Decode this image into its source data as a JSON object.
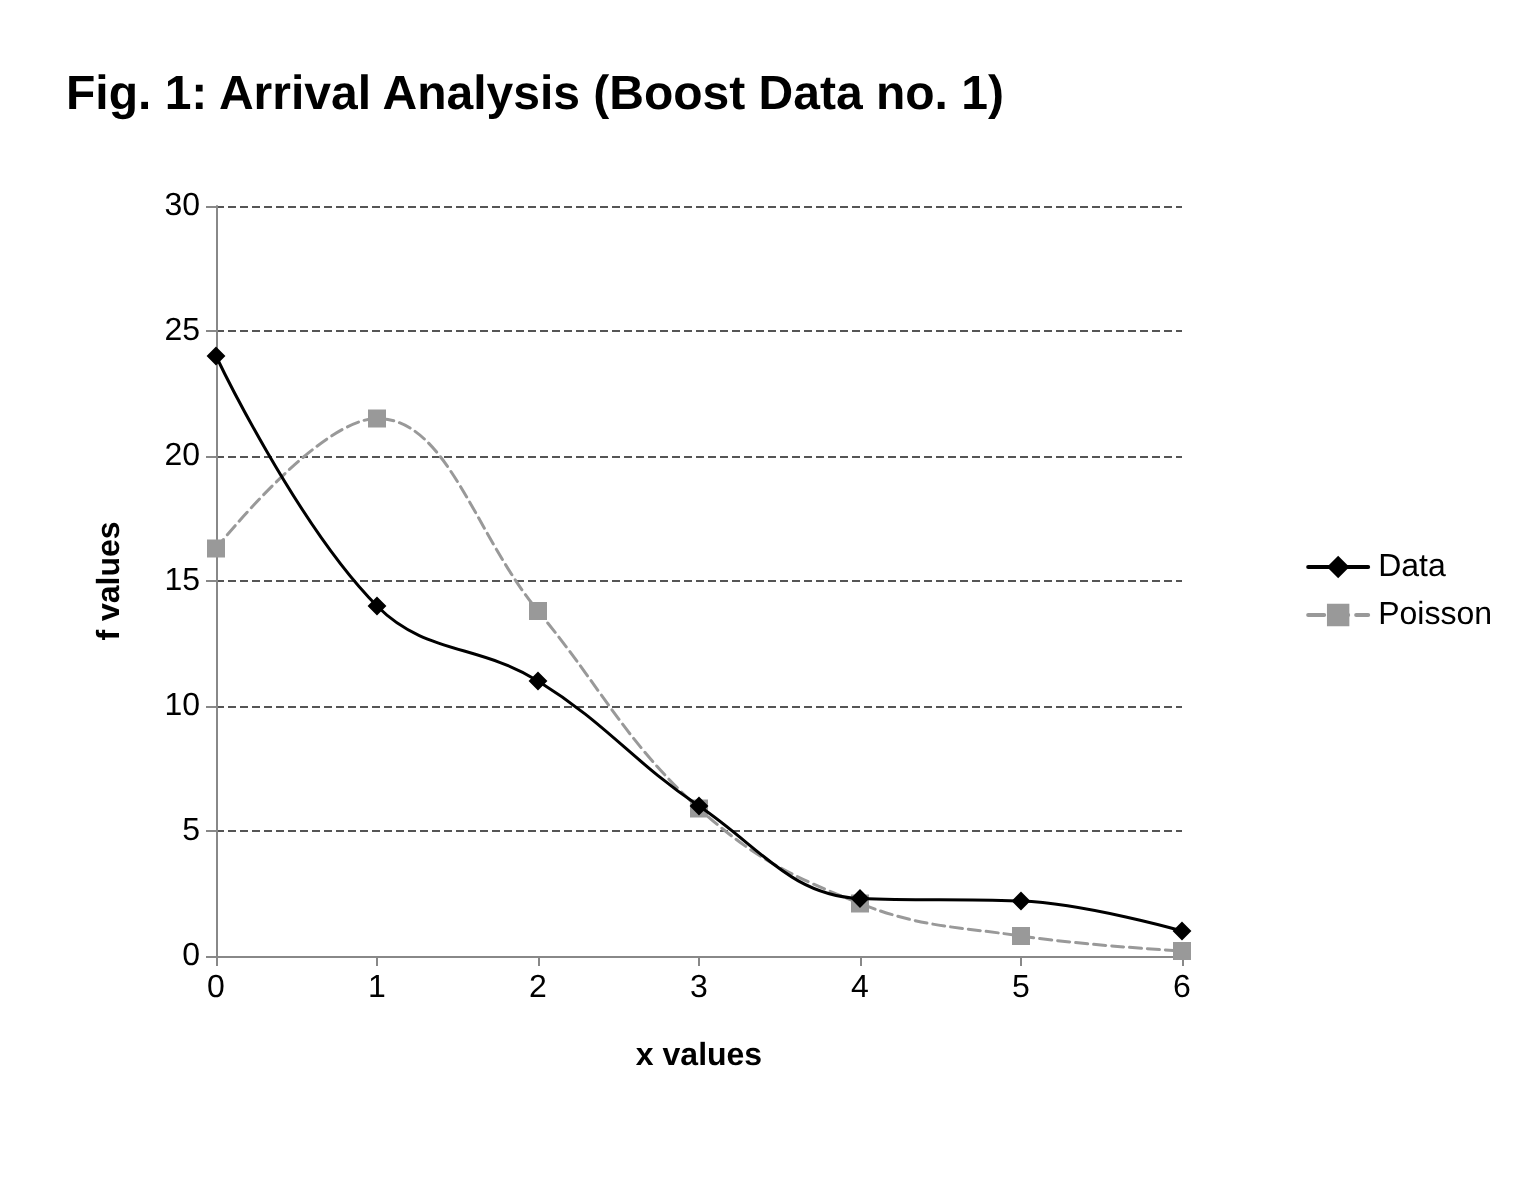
{
  "chart_data": {
    "type": "line",
    "title": "Fig. 1: Arrival Analysis (Boost Data no. 1)",
    "xlabel": "x values",
    "ylabel": "f values",
    "x": [
      0,
      1,
      2,
      3,
      4,
      5,
      6
    ],
    "xlim": [
      0,
      6
    ],
    "xticks": [
      0,
      1,
      2,
      3,
      4,
      5,
      6
    ],
    "ylim": [
      0,
      30
    ],
    "yticks": [
      0,
      5,
      10,
      15,
      20,
      25,
      30
    ],
    "grid": "y",
    "legend": "right",
    "series": [
      {
        "name": "Data",
        "color": "#000000",
        "marker": "diamond",
        "line_style": "solid",
        "values": [
          24,
          14,
          11,
          6,
          2.3,
          2.2,
          1
        ]
      },
      {
        "name": "Poisson",
        "color": "#999999",
        "marker": "square",
        "line_style": "dashed",
        "values": [
          16.3,
          21.5,
          13.8,
          5.9,
          2.1,
          0.8,
          0.2
        ]
      }
    ]
  }
}
